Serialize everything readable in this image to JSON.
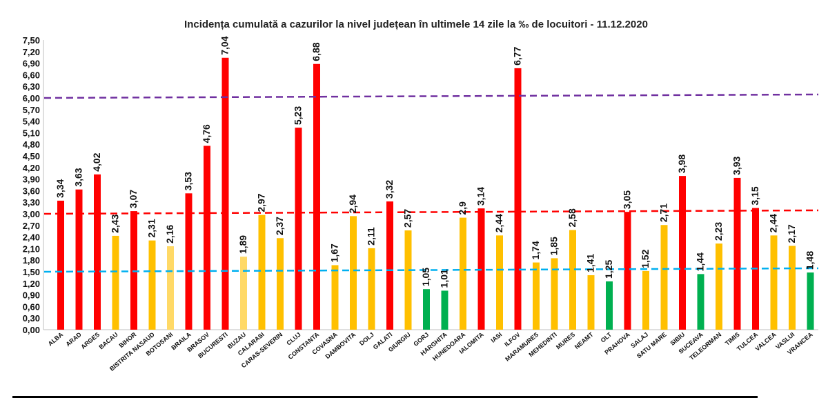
{
  "chart_data": {
    "type": "bar",
    "title": "Incidența cumulată a cazurilor la nivel județean în ultimele 14 zile la ‰ de locuitori - 11.12.2020",
    "xlabel": "",
    "ylabel": "",
    "ylim": [
      0,
      7.5
    ],
    "yticks": [
      "0,00",
      "0,30",
      "0,60",
      "0,90",
      "1,20",
      "1,50",
      "1,80",
      "2,10",
      "2,40",
      "2,70",
      "3,00",
      "3,30",
      "3,60",
      "3,90",
      "4,20",
      "4,50",
      "4,80",
      "5,10",
      "5,40",
      "5,70",
      "6,00",
      "6,30",
      "6,60",
      "6,90",
      "7,20",
      "7,50"
    ],
    "grid": false,
    "categories": [
      "ALBA",
      "ARAD",
      "ARGES",
      "BACAU",
      "BIHOR",
      "BISTRITA NASAUD",
      "BOTOSANI",
      "BRAILA",
      "BRASOV",
      "BUCURESTI",
      "BUZAU",
      "CALARASI",
      "CARAS-SEVERIN",
      "CLUJ",
      "CONSTANTA",
      "COVASNA",
      "DAMBOVITA",
      "DOLJ",
      "GALATI",
      "GIURGIU",
      "GORJ",
      "HARGHITA",
      "HUNEDOARA",
      "IALOMITA",
      "IASI",
      "ILFOV",
      "MARAMURES",
      "MEHEDINTI",
      "MURES",
      "NEAMT",
      "OLT",
      "PRAHOVA",
      "SALAJ",
      "SATU MARE",
      "SIBIU",
      "SUCEAVA",
      "TELEORMAN",
      "TIMIS",
      "TULCEA",
      "VALCEA",
      "VASLUI",
      "VRANCEA"
    ],
    "values": [
      3.34,
      3.63,
      4.02,
      2.43,
      3.07,
      2.31,
      2.16,
      3.53,
      4.76,
      7.04,
      1.89,
      2.97,
      2.37,
      5.23,
      6.88,
      1.67,
      2.94,
      2.11,
      3.32,
      2.57,
      1.05,
      1.01,
      2.9,
      3.14,
      2.44,
      6.77,
      1.74,
      1.85,
      2.58,
      1.41,
      1.25,
      3.05,
      1.52,
      2.71,
      3.98,
      1.44,
      2.23,
      3.93,
      3.15,
      2.44,
      2.17,
      1.48
    ],
    "labels": [
      "3,34",
      "3,63",
      "4,02",
      "2,43",
      "3,07",
      "2,31",
      "2,16",
      "3,53",
      "4,76",
      "7,04",
      "1,89",
      "2,97",
      "2,37",
      "5,23",
      "6,88",
      "1,67",
      "2,94",
      "2,11",
      "3,32",
      "2,57",
      "1,05",
      "1,01",
      "2,9",
      "3,14",
      "2,44",
      "6,77",
      "1,74",
      "1,85",
      "2,58",
      "1,41",
      "1,25",
      "3,05",
      "1,52",
      "2,71",
      "3,98",
      "1,44",
      "2,23",
      "3,93",
      "3,15",
      "2,44",
      "2,17",
      "1,48"
    ],
    "bar_colors": [
      "#ff0000",
      "#ff0000",
      "#ff0000",
      "#ffc000",
      "#ff0000",
      "#ffc000",
      "#ffd966",
      "#ff0000",
      "#ff0000",
      "#ff0000",
      "#ffd966",
      "#ffc000",
      "#ffc000",
      "#ff0000",
      "#ff0000",
      "#ffc000",
      "#ffc000",
      "#ffc000",
      "#ff0000",
      "#ffc000",
      "#00b050",
      "#00b050",
      "#ffc000",
      "#ff0000",
      "#ffc000",
      "#ff0000",
      "#ffc000",
      "#ffc000",
      "#ffc000",
      "#ffc000",
      "#00b050",
      "#ff0000",
      "#ffc000",
      "#ffc000",
      "#ff0000",
      "#00b050",
      "#ffc000",
      "#ff0000",
      "#ff0000",
      "#ffc000",
      "#ffc000",
      "#00b050"
    ],
    "reference_lines": [
      {
        "y_start": 6.0,
        "y_end": 6.09,
        "color": "#7030a0",
        "style": "dashed"
      },
      {
        "y_start": 3.0,
        "y_end": 3.09,
        "color": "#ff0000",
        "style": "dashed"
      },
      {
        "y_start": 1.5,
        "y_end": 1.59,
        "color": "#00b0f0",
        "style": "dashed"
      }
    ]
  }
}
